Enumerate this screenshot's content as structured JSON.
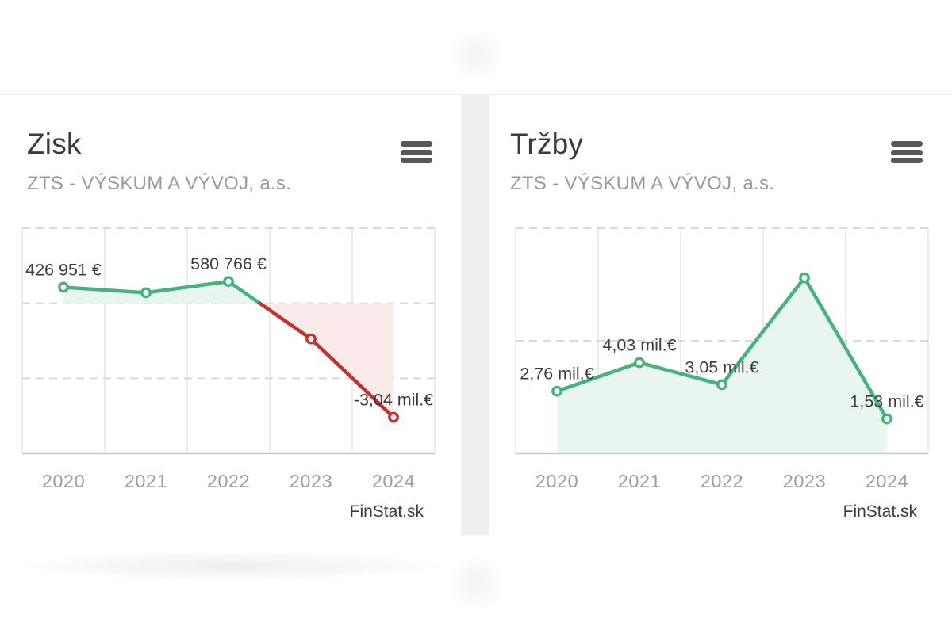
{
  "page": {
    "background": "#ffffff",
    "divider_color": "#f1efed"
  },
  "cards": [
    {
      "title": "Zisk",
      "company": "ZTS - VÝSKUM A VÝVOJ, a.s.",
      "menu_icon": "hamburger-menu-icon",
      "attribution": "FinStat.sk"
    },
    {
      "title": "Tržby",
      "company": "ZTS - VÝSKUM A VÝVOJ, a.s.",
      "menu_icon": "hamburger-menu-icon",
      "attribution": "FinStat.sk"
    }
  ],
  "chart_data": [
    {
      "type": "line",
      "title": "Zisk",
      "subtitle": "ZTS - VÝSKUM A VÝVOJ, a.s.",
      "categories": [
        "2020",
        "2021",
        "2022",
        "2023",
        "2024"
      ],
      "series": [
        {
          "name": "Zisk",
          "values_eur": [
            426951,
            280000,
            580766,
            -950000,
            -3040000
          ]
        }
      ],
      "point_labels": [
        "426 951 €",
        null,
        "580 766 €",
        null,
        "-3,04 mil.€"
      ],
      "unit": "EUR",
      "ylim_eur": [
        -4000000,
        2000000
      ],
      "gridlines_eur": [
        2000000,
        0,
        -2000000
      ],
      "baseline_eur": 0,
      "grid": "dashed-horizontal-with-column-lines",
      "legend": "none",
      "colors": {
        "positive_line": "#47b27e",
        "negative_line": "#c33131",
        "positive_fill": "#e9f6f0",
        "negative_fill": "#fbeaea",
        "point_fill": "#ffffff",
        "grid_dash": "#d9d9d9",
        "column_line": "#e8e8e8",
        "axis_line": "#c9c9c9",
        "point_label": "#3c3c3c",
        "tick_label": "#9e9e9e"
      }
    },
    {
      "type": "line",
      "title": "Tržby",
      "subtitle": "ZTS - VÝSKUM A VÝVOJ, a.s.",
      "categories": [
        "2020",
        "2021",
        "2022",
        "2023",
        "2024"
      ],
      "series": [
        {
          "name": "Tržby",
          "values_eur": [
            2760000,
            4030000,
            3050000,
            7800000,
            1530000
          ]
        }
      ],
      "point_labels": [
        "2,76 mil.€",
        "4,03 mil.€",
        "3,05 mil.€",
        null,
        "1,53 mil.€"
      ],
      "unit": "EUR",
      "ylim_eur": [
        0,
        10000000
      ],
      "gridlines_eur": [
        10000000,
        5000000
      ],
      "baseline_eur": 0,
      "grid": "dashed-horizontal-with-column-lines",
      "legend": "none",
      "colors": {
        "positive_line": "#47b27e",
        "negative_line": "#c33131",
        "positive_fill": "#e9f6f0",
        "negative_fill": "#fbeaea",
        "point_fill": "#ffffff",
        "grid_dash": "#d9d9d9",
        "column_line": "#e8e8e8",
        "axis_line": "#c9c9c9",
        "point_label": "#3c3c3c",
        "tick_label": "#9e9e9e"
      }
    }
  ]
}
